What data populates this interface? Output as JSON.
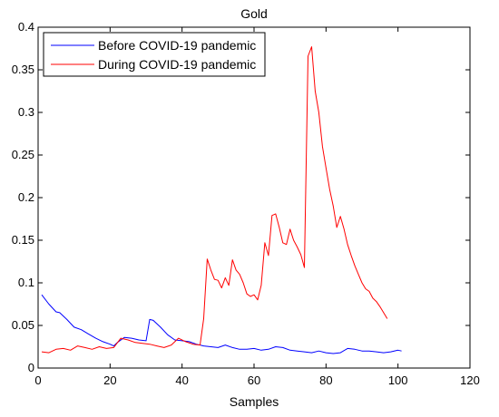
{
  "chart_data": {
    "type": "line",
    "title": "Gold",
    "xlabel": "Samples",
    "ylabel": "",
    "xlim": [
      0,
      120
    ],
    "ylim": [
      0,
      0.4
    ],
    "xticks": [
      0,
      20,
      40,
      60,
      80,
      100,
      120
    ],
    "yticks": [
      0,
      0.05,
      0.1,
      0.15,
      0.2,
      0.25,
      0.3,
      0.35,
      0.4
    ],
    "xtick_labels": [
      "0",
      "20",
      "40",
      "60",
      "80",
      "100",
      "120"
    ],
    "ytick_labels": [
      "0",
      "0.05",
      "0.1",
      "0.15",
      "0.2",
      "0.25",
      "0.3",
      "0.35",
      "0.4"
    ],
    "grid": false,
    "legend_position": "top-left",
    "series": [
      {
        "name": "Before COVID-19 pandemic",
        "color": "#0000ff",
        "x": [
          1,
          3,
          5,
          6,
          8,
          10,
          12,
          14,
          16,
          18,
          20,
          21,
          22,
          24,
          26,
          28,
          30,
          31,
          32,
          34,
          36,
          38,
          40,
          42,
          44,
          46,
          48,
          50,
          52,
          54,
          56,
          58,
          60,
          62,
          64,
          66,
          68,
          70,
          72,
          74,
          76,
          78,
          80,
          82,
          84,
          86,
          88,
          90,
          92,
          94,
          96,
          98,
          100,
          101
        ],
        "y": [
          0.086,
          0.075,
          0.066,
          0.065,
          0.057,
          0.048,
          0.045,
          0.04,
          0.035,
          0.031,
          0.028,
          0.026,
          0.03,
          0.036,
          0.035,
          0.033,
          0.032,
          0.057,
          0.056,
          0.048,
          0.039,
          0.033,
          0.032,
          0.031,
          0.028,
          0.026,
          0.025,
          0.024,
          0.027,
          0.024,
          0.022,
          0.022,
          0.023,
          0.021,
          0.022,
          0.025,
          0.024,
          0.021,
          0.02,
          0.019,
          0.018,
          0.02,
          0.018,
          0.017,
          0.018,
          0.023,
          0.022,
          0.02,
          0.02,
          0.019,
          0.018,
          0.019,
          0.021,
          0.02
        ]
      },
      {
        "name": "During COVID-19 pandemic",
        "color": "#ff0000",
        "x": [
          1,
          3,
          5,
          7,
          9,
          11,
          13,
          15,
          17,
          19,
          21,
          23,
          25,
          27,
          29,
          31,
          33,
          35,
          37,
          39,
          41,
          43,
          45,
          46,
          47,
          48,
          49,
          50,
          51,
          52,
          53,
          54,
          55,
          56,
          57,
          58,
          59,
          60,
          61,
          62,
          63,
          64,
          65,
          66,
          67,
          68,
          69,
          70,
          71,
          72,
          73,
          74,
          75,
          76,
          77,
          78,
          79,
          80,
          81,
          82,
          83,
          84,
          85,
          86,
          87,
          88,
          89,
          90,
          91,
          92,
          93,
          94,
          95,
          96,
          97
        ],
        "y": [
          0.019,
          0.018,
          0.022,
          0.023,
          0.021,
          0.026,
          0.024,
          0.022,
          0.025,
          0.023,
          0.024,
          0.035,
          0.033,
          0.03,
          0.029,
          0.028,
          0.026,
          0.024,
          0.027,
          0.035,
          0.031,
          0.028,
          0.027,
          0.058,
          0.128,
          0.115,
          0.104,
          0.103,
          0.094,
          0.106,
          0.097,
          0.127,
          0.115,
          0.11,
          0.1,
          0.087,
          0.084,
          0.086,
          0.08,
          0.097,
          0.147,
          0.132,
          0.179,
          0.181,
          0.165,
          0.147,
          0.145,
          0.163,
          0.15,
          0.142,
          0.133,
          0.118,
          0.366,
          0.377,
          0.325,
          0.3,
          0.26,
          0.235,
          0.21,
          0.19,
          0.165,
          0.178,
          0.163,
          0.145,
          0.132,
          0.12,
          0.11,
          0.1,
          0.093,
          0.09,
          0.082,
          0.078,
          0.072,
          0.065,
          0.058
        ]
      }
    ]
  }
}
